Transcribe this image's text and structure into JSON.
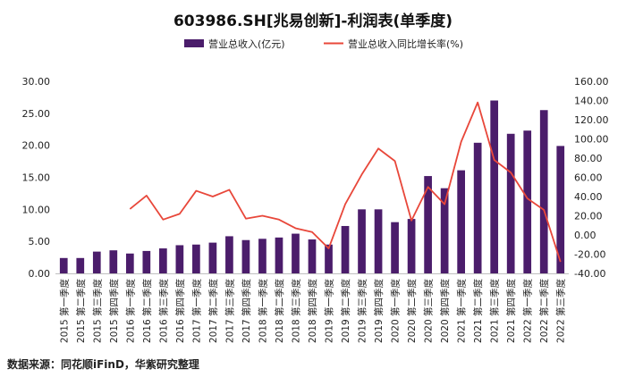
{
  "chart_data": {
    "type": "bar",
    "title": "603986.SH[兆易创新]-利润表(单季度)",
    "source": "数据来源：同花顺iFinD，华紫研究整理",
    "categories": [
      "2015 第一季度",
      "2015 第二季度",
      "2015 第三季度",
      "2015 第四季度",
      "2016 第一季度",
      "2016 第二季度",
      "2016 第三季度",
      "2016 第四季度",
      "2017 第一季度",
      "2017 第二季度",
      "2017 第三季度",
      "2017 第四季度",
      "2018 第一季度",
      "2018 第二季度",
      "2018 第三季度",
      "2018 第四季度",
      "2019 第一季度",
      "2019 第二季度",
      "2019 第三季度",
      "2019 第四季度",
      "2020 第一季度",
      "2020 第二季度",
      "2020 第三季度",
      "2020 第四季度",
      "2021 第一季度",
      "2021 第二季度",
      "2021 第三季度",
      "2021 第四季度",
      "2022 第一季度",
      "2022 第二季度",
      "2022 第三季度"
    ],
    "series": [
      {
        "name": "营业总收入(亿元)",
        "type": "bar",
        "axis": "left",
        "color": "#4b1d6b",
        "values": [
          2.4,
          2.4,
          3.4,
          3.6,
          3.1,
          3.5,
          3.9,
          4.4,
          4.5,
          4.8,
          5.8,
          5.2,
          5.4,
          5.6,
          6.2,
          5.3,
          4.5,
          7.4,
          10.0,
          10.0,
          8.0,
          8.5,
          15.2,
          13.3,
          16.1,
          20.4,
          27.0,
          21.8,
          22.3,
          25.5,
          19.9
        ]
      },
      {
        "name": "营业总收入同比增长率(%)",
        "type": "line",
        "axis": "right",
        "color": "#e8473a",
        "values": [
          null,
          null,
          null,
          null,
          27,
          41,
          16,
          22,
          46,
          40,
          47,
          17,
          20,
          16,
          7,
          3,
          -14,
          32,
          63,
          90,
          77,
          15,
          50,
          32,
          97,
          138,
          78,
          65,
          38,
          26,
          -28
        ]
      }
    ],
    "left_axis": {
      "min": 0,
      "max": 30,
      "step": 5,
      "decimals": 2
    },
    "right_axis": {
      "min": -40,
      "max": 160,
      "step": 20,
      "decimals": 2
    },
    "legend_position": "top-center"
  }
}
